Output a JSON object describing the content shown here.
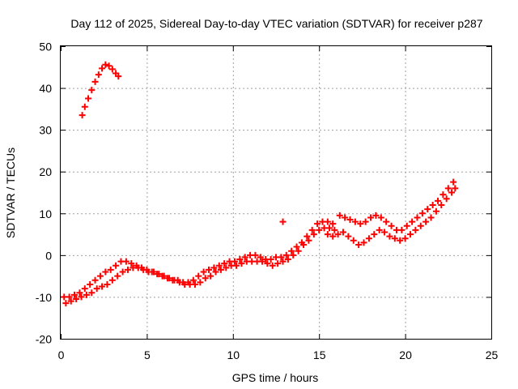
{
  "chart_data": {
    "type": "scatter",
    "title": "Day 112 of 2025, Sidereal Day-to-day VTEC variation (SDTVAR) for receiver p287",
    "xlabel": "GPS time / hours",
    "ylabel": "SDTVAR / TECUs",
    "xlim": [
      0,
      25
    ],
    "ylim": [
      -20,
      50
    ],
    "xticks": [
      0,
      5,
      10,
      15,
      20,
      25
    ],
    "yticks": [
      -20,
      -10,
      0,
      10,
      20,
      30,
      40,
      50
    ],
    "xtick_labels": [
      "0",
      "5",
      "10",
      "15",
      "20",
      "25"
    ],
    "ytick_labels": [
      "-20",
      "-10",
      "0",
      "10",
      "20",
      "30",
      "40",
      "50"
    ],
    "grid": true,
    "marker": "plus",
    "color": "#ff0000",
    "series": [
      {
        "name": "early arc",
        "x": [
          1.25,
          1.4,
          1.6,
          1.8,
          2.0,
          2.2,
          2.4,
          2.6,
          2.8,
          3.0,
          3.2,
          3.35
        ],
        "y": [
          33.5,
          35.5,
          37.5,
          39.5,
          41.5,
          43.2,
          44.7,
          45.6,
          45.3,
          44.5,
          43.5,
          42.8
        ]
      },
      {
        "name": "main trace A",
        "x": [
          0.2,
          0.5,
          0.8,
          1.1,
          1.4,
          1.7,
          2.0,
          2.3,
          2.6,
          2.9,
          3.2,
          3.5,
          3.8,
          4.1,
          4.4,
          4.7,
          5.0,
          5.3,
          5.6,
          5.9,
          6.2,
          6.5,
          6.8,
          7.1,
          7.4,
          7.7,
          8.0,
          8.3,
          8.6,
          8.9,
          9.2,
          9.5,
          9.8,
          10.1,
          10.4,
          10.7,
          11.0,
          11.3,
          11.6,
          11.9,
          12.2,
          12.5,
          12.8,
          13.1,
          13.4,
          13.7,
          14.0,
          14.3,
          14.6,
          14.9,
          15.2,
          15.5,
          15.8
        ],
        "y": [
          -10,
          -10,
          -9.5,
          -9,
          -8,
          -7,
          -6,
          -5,
          -4,
          -3.5,
          -2.5,
          -1.5,
          -1.5,
          -2,
          -2.5,
          -3,
          -3.5,
          -4,
          -4.5,
          -5,
          -5.5,
          -6,
          -6,
          -6.5,
          -6.5,
          -6,
          -5,
          -4,
          -3.5,
          -3,
          -2.5,
          -2,
          -1.5,
          -1.5,
          -1,
          -0.5,
          0,
          0,
          -0.5,
          -1,
          -1,
          -0.5,
          -0.5,
          0,
          1,
          2,
          3,
          4.5,
          6,
          7.5,
          8,
          8,
          7.5
        ]
      },
      {
        "name": "main trace B",
        "x": [
          0.3,
          0.6,
          0.9,
          1.2,
          1.5,
          1.8,
          2.1,
          2.4,
          2.7,
          3.0,
          3.3,
          3.6,
          3.9,
          4.2,
          4.5,
          4.8,
          5.1,
          5.4,
          5.7,
          6.0,
          6.3,
          6.6,
          6.9,
          7.2,
          7.5,
          7.8,
          8.1,
          8.4,
          8.7,
          9.0,
          9.3,
          9.6,
          9.9,
          10.2,
          10.5,
          10.8,
          11.1,
          11.4,
          11.7,
          12.0,
          12.3,
          12.6,
          12.9,
          13.2,
          13.5,
          13.8,
          14.1,
          14.4,
          14.7,
          15.0,
          15.3,
          15.6,
          15.9
        ],
        "y": [
          -11.5,
          -11,
          -10.5,
          -10,
          -9.5,
          -9,
          -8,
          -7.5,
          -7,
          -6,
          -5,
          -4,
          -3.5,
          -3,
          -3,
          -3.5,
          -4,
          -4,
          -4.5,
          -5,
          -5.5,
          -6,
          -6.5,
          -7,
          -7,
          -7,
          -6.5,
          -5.5,
          -5,
          -4,
          -3.5,
          -3,
          -2.5,
          -2.5,
          -2,
          -1.5,
          -1.5,
          -1.5,
          -1.5,
          -2,
          -2.5,
          -2,
          -1.5,
          -1,
          0,
          1,
          2.5,
          3.5,
          5,
          6,
          6.5,
          6.5,
          6
        ]
      },
      {
        "name": "late trace A",
        "x": [
          16.2,
          16.5,
          16.8,
          17.1,
          17.4,
          17.7,
          18.0,
          18.3,
          18.6,
          18.9,
          19.2,
          19.5,
          19.8,
          20.1,
          20.4,
          20.7,
          21.0,
          21.3,
          21.6,
          21.9,
          22.2,
          22.5,
          22.8
        ],
        "y": [
          9.5,
          9,
          8.5,
          8,
          7.5,
          8,
          9,
          9.5,
          9,
          8,
          7,
          6,
          6,
          7,
          8,
          9,
          10,
          11,
          12,
          13,
          14.5,
          16,
          17.5
        ]
      },
      {
        "name": "late trace B",
        "x": [
          15.5,
          15.8,
          16.1,
          16.4,
          16.7,
          17.0,
          17.3,
          17.6,
          17.9,
          18.2,
          18.5,
          18.8,
          19.1,
          19.4,
          19.7,
          20.0,
          20.3,
          20.6,
          20.9,
          21.2,
          21.5,
          21.8,
          22.1,
          22.4,
          22.7,
          22.9
        ],
        "y": [
          5,
          4.5,
          5,
          5.5,
          4.5,
          3.5,
          2.5,
          3,
          4,
          5,
          6,
          5.5,
          4.5,
          4,
          3.5,
          4,
          5,
          6,
          7,
          8,
          9,
          10.5,
          12,
          13.5,
          15,
          16
        ]
      },
      {
        "name": "outlier",
        "x": [
          12.9
        ],
        "y": [
          8
        ]
      }
    ]
  }
}
